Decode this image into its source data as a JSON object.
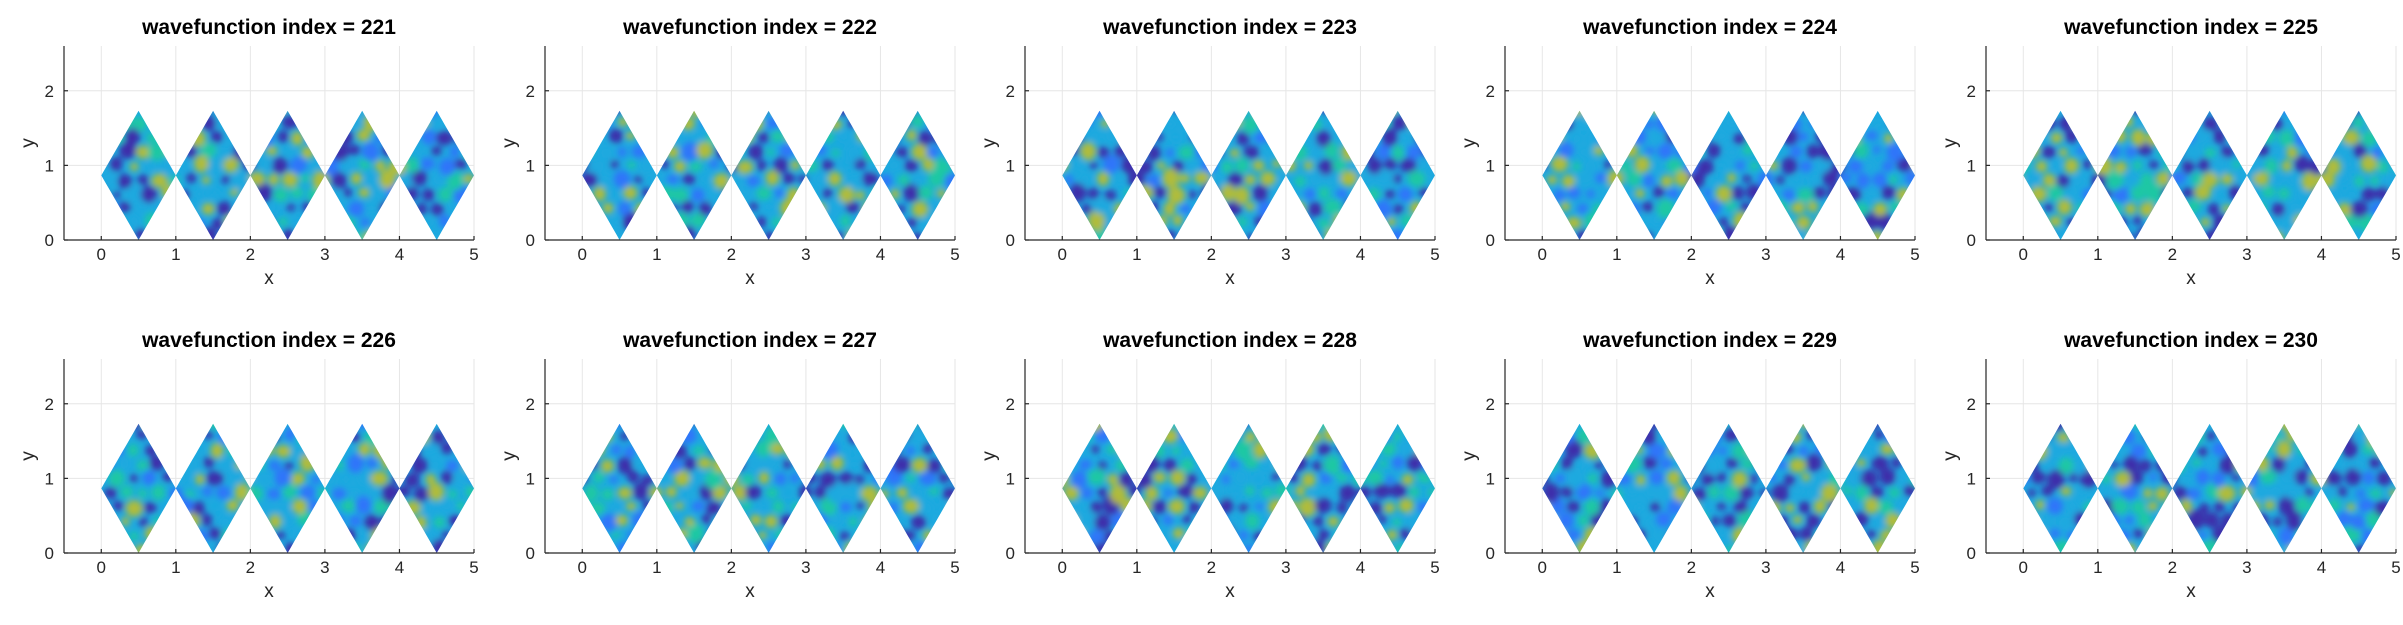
{
  "chart_data": {
    "type": "heatmap",
    "layout": {
      "rows": 2,
      "cols": 5
    },
    "xlabel": "x",
    "ylabel": "y",
    "xlim": [
      -0.5,
      5
    ],
    "ylim": [
      0,
      2.6
    ],
    "xticks": [
      0,
      1,
      2,
      3,
      4,
      5
    ],
    "yticks": [
      0,
      1,
      2
    ],
    "grid": true,
    "colormap": [
      "#3e26a8",
      "#2e73fb",
      "#1ca9df",
      "#1fc9a0",
      "#b7bd32",
      "#f9d32d"
    ],
    "domain_vertices_top": [
      [
        0,
        0.866
      ],
      [
        0.5,
        1.732
      ],
      [
        1,
        0.866
      ],
      [
        1.5,
        1.732
      ],
      [
        2,
        0.866
      ],
      [
        2.5,
        1.732
      ],
      [
        3,
        0.866
      ],
      [
        3.5,
        1.732
      ],
      [
        4,
        0.866
      ],
      [
        4.5,
        1.732
      ],
      [
        5,
        0.866
      ]
    ],
    "panels": [
      {
        "title": "wavefunction index = 221",
        "index": 221
      },
      {
        "title": "wavefunction index = 222",
        "index": 222
      },
      {
        "title": "wavefunction index = 223",
        "index": 223
      },
      {
        "title": "wavefunction index = 224",
        "index": 224
      },
      {
        "title": "wavefunction index = 225",
        "index": 225
      },
      {
        "title": "wavefunction index = 226",
        "index": 226
      },
      {
        "title": "wavefunction index = 227",
        "index": 227
      },
      {
        "title": "wavefunction index = 228",
        "index": 228
      },
      {
        "title": "wavefunction index = 229",
        "index": 229
      },
      {
        "title": "wavefunction index = 230",
        "index": 230
      }
    ]
  }
}
